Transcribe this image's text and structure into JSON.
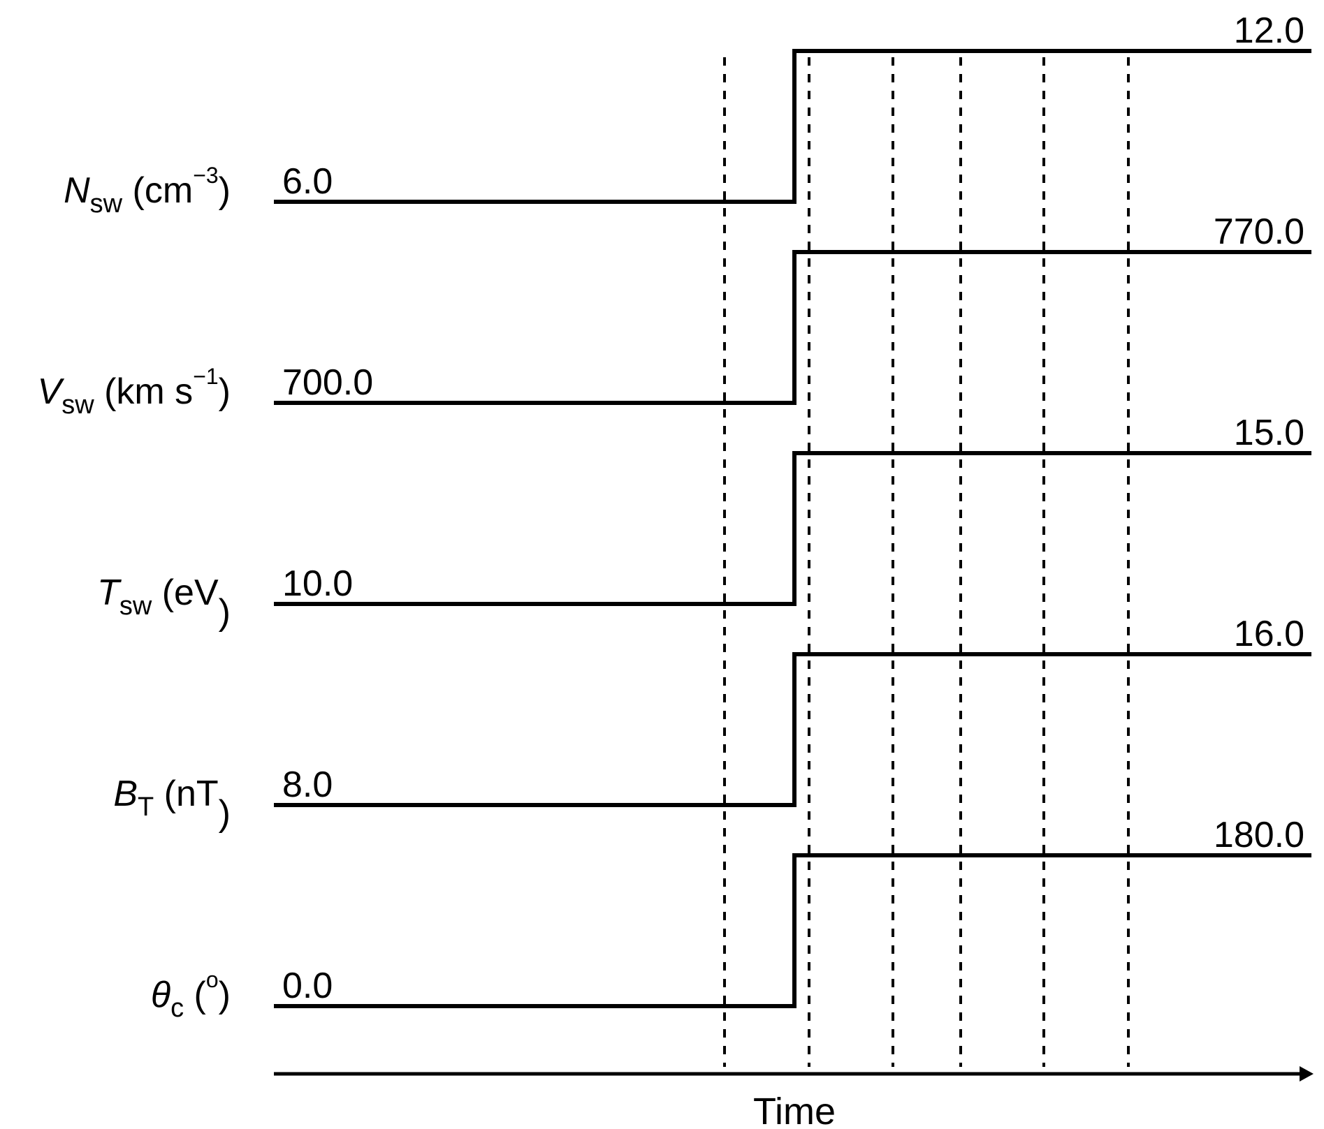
{
  "diagram": {
    "x_axis_label": "Time",
    "rows": [
      {
        "name": "N",
        "subscript": "sw",
        "unit_open": " (cm",
        "unit_sup": "−3",
        "unit_close": ")",
        "before": "6.0",
        "after": "12.0"
      },
      {
        "name": "V",
        "subscript": "sw",
        "unit_open": " (km s",
        "unit_sup": "−1",
        "unit_close": ")",
        "before": "700.0",
        "after": "770.0"
      },
      {
        "name": "T",
        "subscript": "sw",
        "unit_open": " (eV",
        "unit_sup": "",
        "unit_close": ")",
        "before": "10.0",
        "after": "15.0"
      },
      {
        "name": "B",
        "subscript": "T",
        "unit_open": " (nT",
        "unit_sup": "",
        "unit_close": ")",
        "before": "8.0",
        "after": "16.0"
      },
      {
        "name": "θ",
        "subscript": "c",
        "unit_open": " (",
        "unit_sup": "o",
        "unit_close": ")",
        "before": "0.0",
        "after": "180.0"
      }
    ],
    "colors": {
      "line": "#000000",
      "background": "#ffffff"
    }
  }
}
